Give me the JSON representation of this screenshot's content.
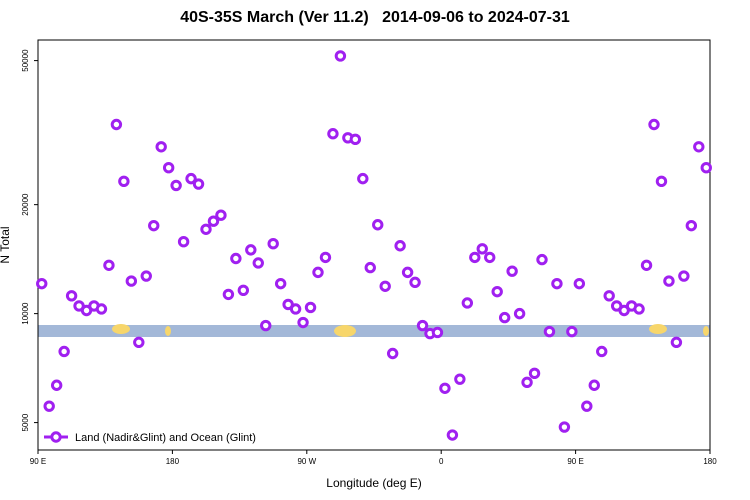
{
  "chart_data": {
    "type": "scatter",
    "title": "40S-35S March (Ver 11.2)   2014-09-06 to 2024-07-31",
    "x_label": "Longitude (deg E)",
    "y_label": "N Total",
    "log_y": true,
    "legend": "bottom-left",
    "xlim": [
      90,
      540
    ],
    "xticks": [
      {
        "value": 90,
        "label": "90 E"
      },
      {
        "value": 180,
        "label": "180"
      },
      {
        "value": 270,
        "label": "90 W"
      },
      {
        "value": 360,
        "label": "0"
      },
      {
        "value": 450,
        "label": "90 E"
      },
      {
        "value": 540,
        "label": "180"
      }
    ],
    "ylim": [
      4200,
      57000
    ],
    "yticks": [
      5000,
      10000,
      20000,
      50000
    ],
    "series": [
      {
        "name": "Land (Nadir&Glint) and Ocean (Glint)",
        "color": "#a020f0",
        "x": [
          92.5,
          97.5,
          102.5,
          107.5,
          112.5,
          117.5,
          122.5,
          127.5,
          132.5,
          137.5,
          142.5,
          147.5,
          152.5,
          157.5,
          162.5,
          167.5,
          172.5,
          177.5,
          182.5,
          187.5,
          192.5,
          197.5,
          202.5,
          207.5,
          212.5,
          217.5,
          222.5,
          227.5,
          232.5,
          237.5,
          242.5,
          247.5,
          252.5,
          257.5,
          262.5,
          267.5,
          272.5,
          277.5,
          282.5,
          287.5,
          292.5,
          297.5,
          302.5,
          307.5,
          312.5,
          317.5,
          322.5,
          327.5,
          332.5,
          337.5,
          342.5,
          347.5,
          352.5,
          357.5,
          362.5,
          367.5,
          372.5,
          377.5,
          382.5,
          387.5,
          392.5,
          397.5,
          402.5,
          407.5,
          412.5,
          417.5,
          422.5,
          427.5,
          432.5,
          437.5,
          442.5,
          447.5,
          452.5,
          457.5,
          462.5,
          467.5,
          472.5,
          477.5,
          482.5,
          487.5,
          492.5,
          497.5,
          502.5,
          507.5,
          512.5,
          517.5,
          522.5,
          527.5,
          532.5,
          537.5
        ],
        "values": [
          12100,
          5550,
          6340,
          7860,
          11200,
          10500,
          10200,
          10500,
          10300,
          13600,
          33300,
          23200,
          12300,
          8330,
          12700,
          17500,
          28900,
          25300,
          22600,
          15800,
          23600,
          22800,
          17100,
          18000,
          18700,
          11300,
          14200,
          11600,
          15000,
          13800,
          9270,
          15600,
          12100,
          10600,
          10300,
          9450,
          10400,
          13000,
          14300,
          31400,
          51500,
          30600,
          30300,
          23600,
          13400,
          17600,
          11900,
          7760,
          15400,
          13000,
          12200,
          9270,
          8810,
          8870,
          6220,
          4620,
          6590,
          10700,
          14300,
          15100,
          14300,
          11500,
          9750,
          13100,
          10000,
          6460,
          6840,
          14100,
          8920,
          12100,
          4860,
          8920,
          12100,
          5550,
          6340,
          7860,
          11200,
          10500,
          10200,
          10500,
          10300,
          13600,
          33300,
          23200,
          12300,
          8330,
          12700,
          17500,
          28900,
          25300
        ]
      }
    ]
  }
}
